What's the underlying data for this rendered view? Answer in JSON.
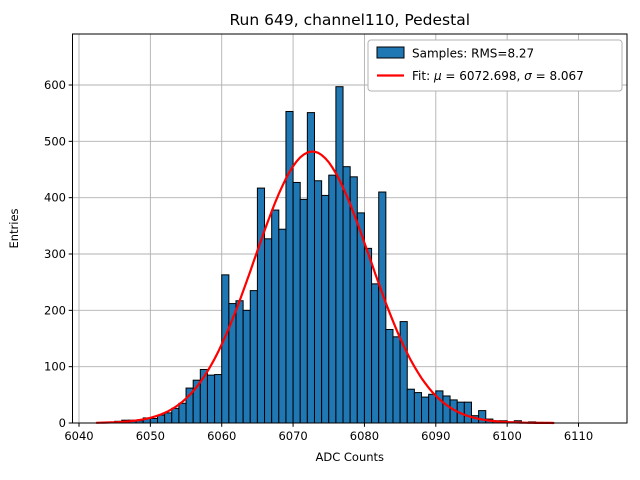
{
  "title": "Run 649, channel110, Pedestal",
  "axes": {
    "xlabel": "ADC Counts",
    "ylabel": "Entries",
    "x_ticks": [
      6040,
      6050,
      6060,
      6070,
      6080,
      6090,
      6100,
      6110
    ],
    "y_ticks": [
      0,
      100,
      200,
      300,
      400,
      500,
      600
    ]
  },
  "legend": {
    "samples_label": "Samples: RMS=8.27",
    "fit_parts": {
      "prefix": "Fit: ",
      "mu": "μ",
      "eq1": " = 6072.698, ",
      "sigma": "σ",
      "eq2": " = 8.067"
    }
  },
  "colors": {
    "bar_fill": "#1f77b4",
    "bar_edge": "#000000",
    "fit_line": "#ff0000",
    "grid": "#b0b0b0"
  },
  "chart_data": {
    "type": "bar",
    "title": "Run 649, channel110, Pedestal",
    "xlabel": "ADC Counts",
    "ylabel": "Entries",
    "grid": true,
    "legend_position": "upper right",
    "xlim": [
      6039,
      6117
    ],
    "ylim": [
      0,
      690
    ],
    "bin_width": 1,
    "bin_left_edges": [
      6045,
      6046,
      6047,
      6048,
      6049,
      6050,
      6051,
      6052,
      6053,
      6054,
      6055,
      6056,
      6057,
      6058,
      6059,
      6060,
      6061,
      6062,
      6063,
      6064,
      6065,
      6066,
      6067,
      6068,
      6069,
      6070,
      6071,
      6072,
      6073,
      6074,
      6075,
      6076,
      6077,
      6078,
      6079,
      6080,
      6081,
      6082,
      6083,
      6084,
      6085,
      6086,
      6087,
      6088,
      6089,
      6090,
      6091,
      6092,
      6093,
      6094,
      6095,
      6096,
      6097,
      6098,
      6099,
      6100,
      6101,
      6102,
      6103,
      6104
    ],
    "values": [
      3,
      5,
      5,
      4,
      9,
      8,
      14,
      18,
      26,
      35,
      62,
      76,
      95,
      85,
      86,
      263,
      212,
      217,
      200,
      235,
      417,
      327,
      378,
      344,
      553,
      427,
      397,
      551,
      430,
      404,
      440,
      597,
      455,
      437,
      373,
      310,
      247,
      410,
      166,
      153,
      180,
      60,
      54,
      46,
      51,
      57,
      48,
      41,
      37,
      37,
      13,
      22,
      7,
      4,
      4,
      2,
      4,
      1,
      2,
      1
    ],
    "stats": {
      "rms": 8.27
    },
    "fit": {
      "type": "gaussian",
      "mu": 6072.698,
      "sigma": 8.067,
      "amplitude": 482,
      "range": [
        6042.5,
        6106.5
      ]
    }
  }
}
